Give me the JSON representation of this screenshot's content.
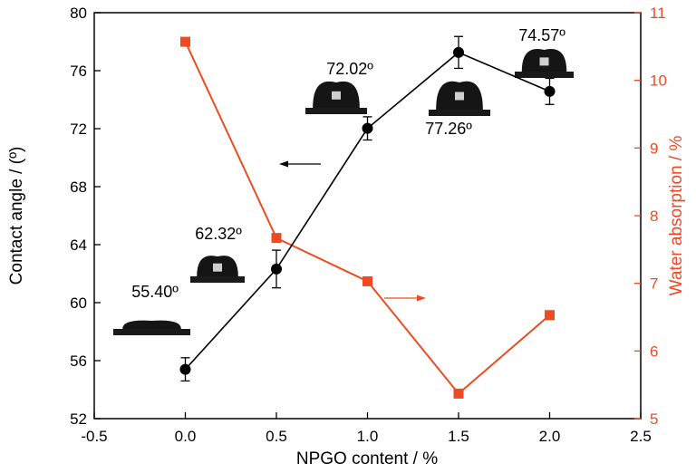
{
  "chart_data": {
    "type": "line",
    "xlabel": "NPGO content / %",
    "ylabel_left": "Contact angle / (º)",
    "ylabel_right": "Water absorption / %",
    "x_ticks": [
      "-0.5",
      "0.0",
      "0.5",
      "1.0",
      "1.5",
      "2.0",
      "2.5"
    ],
    "y_left_ticks": [
      "52",
      "56",
      "60",
      "64",
      "68",
      "72",
      "76",
      "80"
    ],
    "y_right_ticks": [
      "5",
      "6",
      "7",
      "8",
      "9",
      "10",
      "11"
    ],
    "xlim": [
      -0.5,
      2.5
    ],
    "ylim_left": [
      52,
      80
    ],
    "ylim_right": [
      5,
      11
    ],
    "colors": {
      "contact": "#000000",
      "water": "#EE4B23"
    },
    "series": [
      {
        "axis": "left",
        "marker": "circle",
        "x": [
          0.0,
          0.5,
          1.0,
          1.5,
          2.0
        ],
        "y": [
          55.4,
          62.32,
          72.02,
          77.26,
          74.57
        ],
        "error": [
          0.8,
          1.3,
          0.8,
          1.1,
          0.9
        ]
      },
      {
        "axis": "right",
        "marker": "square",
        "x": [
          0.0,
          0.5,
          1.0,
          1.5,
          2.0
        ],
        "y": [
          10.57,
          7.67,
          7.03,
          5.37,
          6.53
        ]
      }
    ],
    "annotations": [
      {
        "text": "55.40º"
      },
      {
        "text": "62.32º"
      },
      {
        "text": "72.02º"
      },
      {
        "text": "77.26º"
      },
      {
        "text": "74.57º"
      }
    ]
  }
}
